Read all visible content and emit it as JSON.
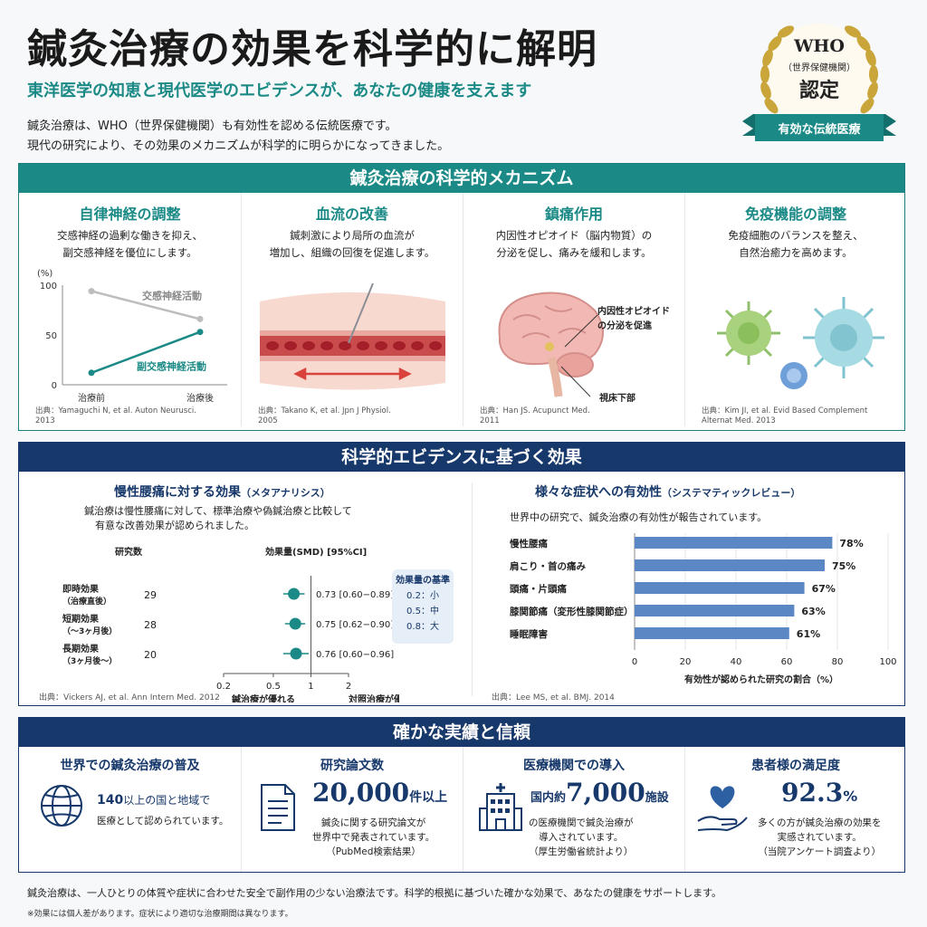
{
  "header": {
    "title": "鍼灸治療の効果を科学的に解明",
    "subtitle": "東洋医学の知恵と現代医学のエビデンスが、あなたの健康を支えます",
    "intro_1": "鍼灸治療は、WHO（世界保健機関）も有効性を認める伝統医療です。",
    "intro_2": "現代の研究により、その効果のメカニズムが科学的に明らかになってきました。"
  },
  "badge": {
    "line1": "WHO",
    "line2": "（世界保健機関）",
    "line3": "認定",
    "ribbon": "有効な伝統医療",
    "colors": {
      "gold": "#c9a53a",
      "ribbon": "#1b8a86"
    }
  },
  "mechanism": {
    "heading": "鍼灸治療の科学的メカニズム",
    "items": [
      {
        "title": "自律神経の調整",
        "desc_1": "交感神経の過剰な働きを抑え、",
        "desc_2": "副交感神経を優位にします。",
        "source_1": "出典：Yamaguchi N, et al. Auton Neurusci.",
        "source_2": "2013"
      },
      {
        "title": "血流の改善",
        "desc_1": "鍼刺激により局所の血流が",
        "desc_2": "増加し、組織の回復を促進します。",
        "source_1": "出典：Takano K, et al. Jpn J Physiol.",
        "source_2": "2005"
      },
      {
        "title": "鎮痛作用",
        "desc_1": "内因性オピオイド（脳内物質）の",
        "desc_2": "分泌を促し、痛みを緩和します。",
        "label_1": "内因性オピオイド",
        "label_2": "の分泌を促進",
        "label_3": "視床下部",
        "source_1": "出典：Han JS. Acupunct Med.",
        "source_2": "2011"
      },
      {
        "title": "免疫機能の調整",
        "desc_1": "免疫細胞のバランスを整え、",
        "desc_2": "自然治癒力を高めます。",
        "source_1": "出典：Kim JI, et al. Evid Based Complement",
        "source_2": "Alternat Med. 2013"
      }
    ],
    "chart_data": {
      "type": "line",
      "ylabel": "(%)",
      "categories": [
        "治療前",
        "治療後"
      ],
      "ylim": [
        0,
        100
      ],
      "yticks": [
        0,
        50,
        100
      ],
      "series": [
        {
          "name": "交感神経活動",
          "values": [
            94,
            66
          ],
          "color": "#bdbdbd"
        },
        {
          "name": "副交感神経活動",
          "values": [
            12,
            53
          ],
          "color": "#1b8a86"
        }
      ]
    }
  },
  "evidence": {
    "heading": "科学的エビデンスに基づく効果",
    "left": {
      "title": "慢性腰痛に対する効果",
      "title_note": "（メタアナリシス）",
      "desc_1": "鍼治療は慢性腰痛に対して、標準治療や偽鍼治療と比較して",
      "desc_2": "有意な改善効果が認められました。",
      "col_studies": "研究数",
      "col_effect": "効果量(SMD) [95%CI]",
      "source": "出典：Vickers AJ, et al. Ann Intern Med. 2012",
      "legend": {
        "title": "効果量の基準",
        "rows": [
          "0.2：小",
          "0.5：中",
          "0.8：大"
        ]
      },
      "chart_data": {
        "type": "forest",
        "x_scale": "log",
        "xlim": [
          0.2,
          2
        ],
        "xticks": [
          0.2,
          0.5,
          1,
          2
        ],
        "xlabel_left": "鍼治療が優れる",
        "xlabel_right": "対照治療が優れる",
        "rows": [
          {
            "label_1": "即時効果",
            "label_2": "（治療直後）",
            "n": "29",
            "est": 0.73,
            "lo": 0.6,
            "hi": 0.89,
            "text": "0.73 [0.60−0.89]"
          },
          {
            "label_1": "短期効果",
            "label_2": "（〜3ヶ月後）",
            "n": "28",
            "est": 0.75,
            "lo": 0.62,
            "hi": 0.9,
            "text": "0.75 [0.62−0.90]"
          },
          {
            "label_1": "長期効果",
            "label_2": "（3ヶ月後〜）",
            "n": "20",
            "est": 0.76,
            "lo": 0.6,
            "hi": 0.96,
            "text": "0.76 [0.60−0.96]"
          }
        ]
      }
    },
    "right": {
      "title": "様々な症状への有効性",
      "title_note": "（システマティックレビュー）",
      "desc": "世界中の研究で、鍼灸治療の有効性が報告されています。",
      "source": "出典：Lee MS, et al. BMJ. 2014",
      "chart_data": {
        "type": "bar",
        "orientation": "horizontal",
        "categories": [
          "慢性腰痛",
          "肩こり・首の痛み",
          "頭痛・片頭痛",
          "膝関節痛（変形性膝関節症）",
          "睡眠障害"
        ],
        "values": [
          78,
          75,
          67,
          63,
          61
        ],
        "value_labels": [
          "78%",
          "75%",
          "67%",
          "63%",
          "61%"
        ],
        "xlim": [
          0,
          100
        ],
        "xticks": [
          0,
          20,
          40,
          60,
          80,
          100
        ],
        "xlabel": "有効性が認められた研究の割合（%）",
        "color": "#5b88c4"
      }
    }
  },
  "record": {
    "heading": "確かな実績と信頼",
    "items": [
      {
        "title": "世界での鍼灸治療の普及",
        "icon": "globe-icon",
        "big_1": "140",
        "big_2": "以上の国と地域で",
        "line_1": "医療として認められています。"
      },
      {
        "title": "研究論文数",
        "icon": "document-icon",
        "big_1": "20,000",
        "big_2": "件以上",
        "line_1": "鍼灸に関する研究論文が",
        "line_2": "世界中で発表されています。",
        "line_3": "（PubMed検索結果）"
      },
      {
        "title": "医療機関での導入",
        "icon": "hospital-icon",
        "pre": "国内約",
        "big_1": "7,000",
        "big_2": "施設",
        "line_1": "の医療機関で鍼灸治療が",
        "line_2": "導入されています。",
        "line_3": "（厚生労働省統計より）"
      },
      {
        "title": "患者様の満足度",
        "icon": "heart-hand-icon",
        "big_1": "92.3",
        "big_2": "%",
        "line_1": "多くの方が鍼灸治療の効果を",
        "line_2": "実感されています。",
        "line_3": "（当院アンケート調査より）"
      }
    ]
  },
  "footer": {
    "main": "鍼灸治療は、一人ひとりの体質や症状に合わせた安全で副作用の少ない治療法です。科学的根拠に基づいた確かな効果で、あなたの健康をサポートします。",
    "note": "※効果には個人差があります。症状により適切な治療期間は異なります。"
  }
}
